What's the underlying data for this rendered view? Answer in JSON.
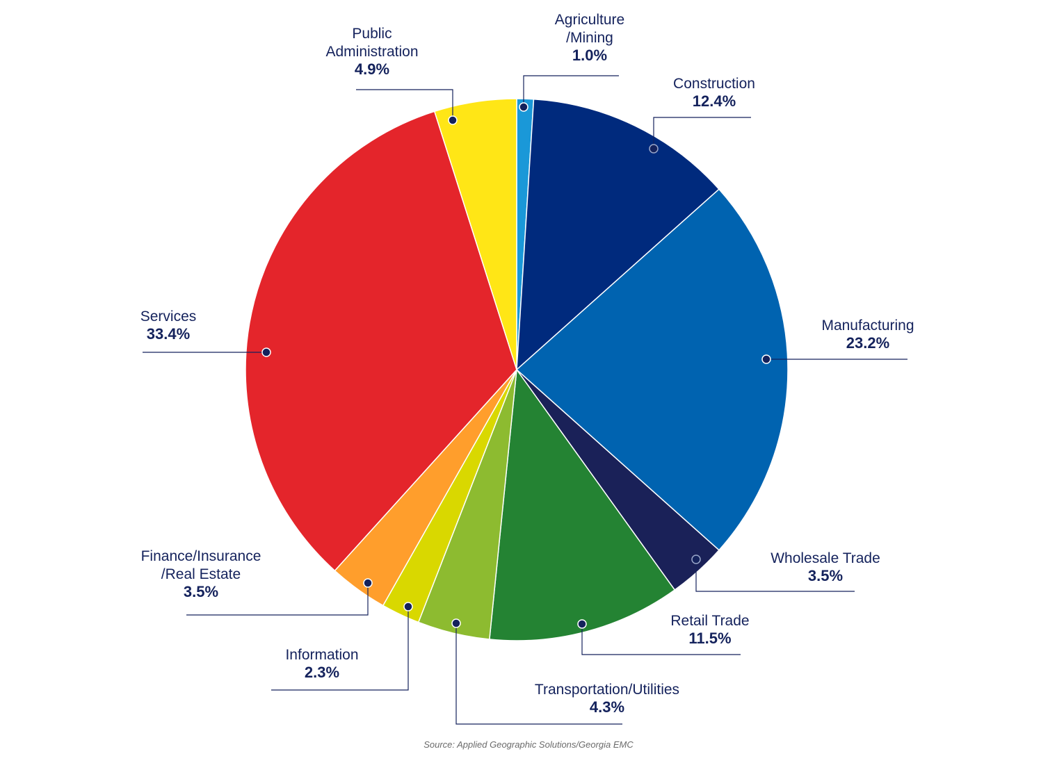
{
  "chart_data": {
    "type": "pie",
    "slices": [
      {
        "name": "Agriculture\n/Mining",
        "value": 1.0,
        "label": "1.0%",
        "color": "#1a98d8"
      },
      {
        "name": "Construction",
        "value": 12.4,
        "label": "12.4%",
        "color": "#002a7d"
      },
      {
        "name": "Manufacturing",
        "value": 23.2,
        "label": "23.2%",
        "color": "#0063b0"
      },
      {
        "name": "Wholesale Trade",
        "value": 3.5,
        "label": "3.5%",
        "color": "#1a2158"
      },
      {
        "name": "Retail Trade",
        "value": 11.5,
        "label": "11.5%",
        "color": "#248333"
      },
      {
        "name": "Transportation/Utilities",
        "value": 4.3,
        "label": "4.3%",
        "color": "#8dbb30"
      },
      {
        "name": "Information",
        "value": 2.3,
        "label": "2.3%",
        "color": "#d9d800"
      },
      {
        "name": "Finance/Insurance\n/Real Estate",
        "value": 3.5,
        "label": "3.5%",
        "color": "#ff9e2c"
      },
      {
        "name": "Services",
        "value": 33.4,
        "label": "33.4%",
        "color": "#e4252b"
      },
      {
        "name": "Public\nAdministration",
        "value": 4.9,
        "label": "4.9%",
        "color": "#ffe616"
      }
    ]
  },
  "source": "Source: Applied Geographic Solutions/Georgia EMC"
}
